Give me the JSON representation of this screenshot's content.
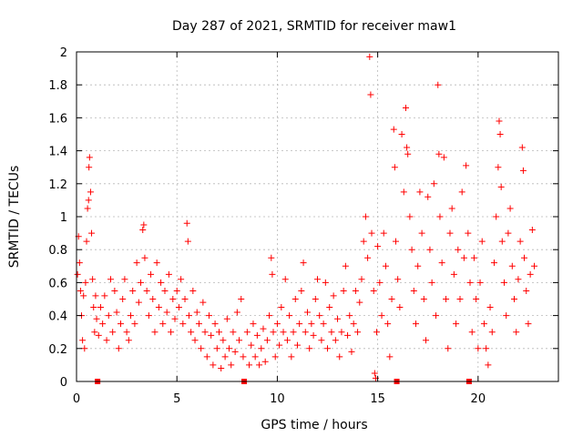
{
  "chart_data": {
    "type": "scatter",
    "title": "Day 287 of 2021, SRMTID for receiver maw1",
    "xlabel": "GPS time / hours",
    "ylabel": "SRMTID / TECUs",
    "xlim": [
      0,
      24
    ],
    "ylim": [
      0,
      2
    ],
    "xticks": [
      0,
      5,
      10,
      15,
      20
    ],
    "yticks": [
      0,
      0.2,
      0.4,
      0.6,
      0.8,
      1,
      1.2,
      1.4,
      1.6,
      1.8,
      2
    ],
    "xtick_labels": [
      "0",
      "5",
      "10",
      "15",
      "20"
    ],
    "ytick_labels": [
      "0",
      "0.2",
      "0.4",
      "0.6",
      "0.8",
      "1",
      "1.2",
      "1.4",
      "1.6",
      "1.8",
      "2"
    ],
    "grid": true,
    "marker": "plus",
    "color": "#ff0000",
    "gap_markers_x": [
      1.05,
      8.35,
      15.95,
      19.55
    ],
    "series": [
      {
        "name": "SRMTID",
        "points": [
          [
            0.05,
            0.65
          ],
          [
            0.1,
            0.88
          ],
          [
            0.15,
            0.72
          ],
          [
            0.2,
            0.55
          ],
          [
            0.25,
            0.4
          ],
          [
            0.3,
            0.25
          ],
          [
            0.35,
            0.52
          ],
          [
            0.4,
            0.2
          ],
          [
            0.45,
            0.6
          ],
          [
            0.5,
            0.85
          ],
          [
            0.55,
            1.05
          ],
          [
            0.6,
            1.1
          ],
          [
            0.62,
            1.3
          ],
          [
            0.65,
            1.36
          ],
          [
            0.7,
            1.15
          ],
          [
            0.75,
            0.9
          ],
          [
            0.8,
            0.62
          ],
          [
            0.85,
            0.45
          ],
          [
            0.9,
            0.3
          ],
          [
            0.95,
            0.52
          ],
          [
            1.0,
            0.38
          ],
          [
            1.1,
            0.28
          ],
          [
            1.2,
            0.45
          ],
          [
            1.3,
            0.35
          ],
          [
            1.4,
            0.52
          ],
          [
            1.5,
            0.25
          ],
          [
            1.6,
            0.4
          ],
          [
            1.7,
            0.62
          ],
          [
            1.8,
            0.3
          ],
          [
            1.9,
            0.55
          ],
          [
            2.0,
            0.42
          ],
          [
            2.1,
            0.2
          ],
          [
            2.2,
            0.35
          ],
          [
            2.3,
            0.5
          ],
          [
            2.4,
            0.62
          ],
          [
            2.5,
            0.3
          ],
          [
            2.6,
            0.25
          ],
          [
            2.7,
            0.4
          ],
          [
            2.8,
            0.55
          ],
          [
            2.9,
            0.35
          ],
          [
            3.0,
            0.72
          ],
          [
            3.1,
            0.48
          ],
          [
            3.2,
            0.6
          ],
          [
            3.3,
            0.92
          ],
          [
            3.35,
            0.95
          ],
          [
            3.4,
            0.75
          ],
          [
            3.5,
            0.55
          ],
          [
            3.6,
            0.4
          ],
          [
            3.7,
            0.65
          ],
          [
            3.8,
            0.5
          ],
          [
            3.9,
            0.3
          ],
          [
            4.0,
            0.72
          ],
          [
            4.1,
            0.45
          ],
          [
            4.2,
            0.6
          ],
          [
            4.3,
            0.35
          ],
          [
            4.4,
            0.55
          ],
          [
            4.5,
            0.42
          ],
          [
            4.6,
            0.65
          ],
          [
            4.7,
            0.3
          ],
          [
            4.8,
            0.5
          ],
          [
            4.9,
            0.38
          ],
          [
            5.0,
            0.55
          ],
          [
            5.1,
            0.45
          ],
          [
            5.2,
            0.62
          ],
          [
            5.3,
            0.35
          ],
          [
            5.4,
            0.5
          ],
          [
            5.5,
            0.96
          ],
          [
            5.55,
            0.85
          ],
          [
            5.6,
            0.4
          ],
          [
            5.7,
            0.3
          ],
          [
            5.8,
            0.55
          ],
          [
            5.9,
            0.25
          ],
          [
            6.0,
            0.42
          ],
          [
            6.1,
            0.35
          ],
          [
            6.2,
            0.2
          ],
          [
            6.3,
            0.48
          ],
          [
            6.4,
            0.3
          ],
          [
            6.5,
            0.15
          ],
          [
            6.6,
            0.4
          ],
          [
            6.7,
            0.28
          ],
          [
            6.8,
            0.1
          ],
          [
            6.9,
            0.35
          ],
          [
            7.0,
            0.2
          ],
          [
            7.1,
            0.3
          ],
          [
            7.2,
            0.08
          ],
          [
            7.3,
            0.25
          ],
          [
            7.4,
            0.15
          ],
          [
            7.5,
            0.38
          ],
          [
            7.6,
            0.2
          ],
          [
            7.7,
            0.1
          ],
          [
            7.8,
            0.3
          ],
          [
            7.9,
            0.18
          ],
          [
            8.0,
            0.42
          ],
          [
            8.1,
            0.25
          ],
          [
            8.2,
            0.5
          ],
          [
            8.3,
            0.15
          ],
          [
            8.5,
            0.3
          ],
          [
            8.6,
            0.1
          ],
          [
            8.7,
            0.22
          ],
          [
            8.8,
            0.35
          ],
          [
            8.9,
            0.15
          ],
          [
            9.0,
            0.28
          ],
          [
            9.1,
            0.1
          ],
          [
            9.2,
            0.2
          ],
          [
            9.3,
            0.32
          ],
          [
            9.4,
            0.12
          ],
          [
            9.5,
            0.25
          ],
          [
            9.6,
            0.4
          ],
          [
            9.7,
            0.75
          ],
          [
            9.75,
            0.65
          ],
          [
            9.8,
            0.3
          ],
          [
            9.9,
            0.15
          ],
          [
            10.0,
            0.35
          ],
          [
            10.1,
            0.22
          ],
          [
            10.2,
            0.45
          ],
          [
            10.3,
            0.3
          ],
          [
            10.4,
            0.62
          ],
          [
            10.5,
            0.25
          ],
          [
            10.6,
            0.4
          ],
          [
            10.7,
            0.15
          ],
          [
            10.8,
            0.3
          ],
          [
            10.9,
            0.5
          ],
          [
            11.0,
            0.22
          ],
          [
            11.1,
            0.35
          ],
          [
            11.2,
            0.55
          ],
          [
            11.3,
            0.72
          ],
          [
            11.4,
            0.3
          ],
          [
            11.5,
            0.42
          ],
          [
            11.6,
            0.2
          ],
          [
            11.7,
            0.35
          ],
          [
            11.8,
            0.28
          ],
          [
            11.9,
            0.5
          ],
          [
            12.0,
            0.62
          ],
          [
            12.1,
            0.4
          ],
          [
            12.2,
            0.25
          ],
          [
            12.3,
            0.35
          ],
          [
            12.4,
            0.6
          ],
          [
            12.5,
            0.2
          ],
          [
            12.6,
            0.45
          ],
          [
            12.7,
            0.3
          ],
          [
            12.8,
            0.52
          ],
          [
            12.9,
            0.25
          ],
          [
            13.0,
            0.38
          ],
          [
            13.1,
            0.15
          ],
          [
            13.2,
            0.3
          ],
          [
            13.3,
            0.55
          ],
          [
            13.4,
            0.7
          ],
          [
            13.5,
            0.28
          ],
          [
            13.6,
            0.4
          ],
          [
            13.7,
            0.18
          ],
          [
            13.8,
            0.35
          ],
          [
            13.9,
            0.55
          ],
          [
            14.0,
            0.3
          ],
          [
            14.1,
            0.48
          ],
          [
            14.2,
            0.62
          ],
          [
            14.3,
            0.85
          ],
          [
            14.4,
            1.0
          ],
          [
            14.5,
            0.75
          ],
          [
            14.6,
            1.97
          ],
          [
            14.65,
            1.74
          ],
          [
            14.7,
            0.9
          ],
          [
            14.8,
            0.55
          ],
          [
            14.85,
            0.05
          ],
          [
            14.9,
            0.02
          ],
          [
            14.95,
            0.3
          ],
          [
            15.0,
            0.82
          ],
          [
            15.1,
            0.6
          ],
          [
            15.2,
            0.4
          ],
          [
            15.3,
            0.9
          ],
          [
            15.4,
            0.7
          ],
          [
            15.5,
            0.35
          ],
          [
            15.6,
            0.15
          ],
          [
            15.7,
            0.5
          ],
          [
            15.8,
            1.53
          ],
          [
            15.85,
            1.3
          ],
          [
            15.9,
            0.85
          ],
          [
            16.0,
            0.62
          ],
          [
            16.1,
            0.45
          ],
          [
            16.2,
            1.5
          ],
          [
            16.3,
            1.15
          ],
          [
            16.4,
            1.66
          ],
          [
            16.45,
            1.42
          ],
          [
            16.5,
            1.38
          ],
          [
            16.6,
            1.0
          ],
          [
            16.7,
            0.8
          ],
          [
            16.8,
            0.55
          ],
          [
            16.9,
            0.35
          ],
          [
            17.0,
            0.7
          ],
          [
            17.1,
            1.15
          ],
          [
            17.2,
            0.9
          ],
          [
            17.3,
            0.5
          ],
          [
            17.4,
            0.25
          ],
          [
            17.5,
            1.12
          ],
          [
            17.6,
            0.8
          ],
          [
            17.7,
            0.6
          ],
          [
            17.8,
            1.2
          ],
          [
            17.9,
            0.4
          ],
          [
            18.0,
            1.8
          ],
          [
            18.05,
            1.38
          ],
          [
            18.1,
            1.0
          ],
          [
            18.2,
            0.72
          ],
          [
            18.3,
            1.36
          ],
          [
            18.4,
            0.5
          ],
          [
            18.5,
            0.2
          ],
          [
            18.6,
            0.9
          ],
          [
            18.7,
            1.05
          ],
          [
            18.8,
            0.65
          ],
          [
            18.9,
            0.35
          ],
          [
            19.0,
            0.8
          ],
          [
            19.1,
            0.5
          ],
          [
            19.2,
            1.15
          ],
          [
            19.3,
            0.75
          ],
          [
            19.4,
            1.31
          ],
          [
            19.5,
            0.9
          ],
          [
            19.6,
            0.6
          ],
          [
            19.7,
            0.3
          ],
          [
            19.8,
            0.75
          ],
          [
            19.9,
            0.5
          ],
          [
            20.0,
            0.2
          ],
          [
            20.1,
            0.6
          ],
          [
            20.2,
            0.85
          ],
          [
            20.3,
            0.35
          ],
          [
            20.4,
            0.2
          ],
          [
            20.5,
            0.1
          ],
          [
            20.6,
            0.45
          ],
          [
            20.7,
            0.3
          ],
          [
            20.8,
            0.72
          ],
          [
            20.9,
            1.0
          ],
          [
            21.0,
            1.3
          ],
          [
            21.05,
            1.58
          ],
          [
            21.1,
            1.5
          ],
          [
            21.15,
            1.18
          ],
          [
            21.2,
            0.85
          ],
          [
            21.3,
            0.6
          ],
          [
            21.4,
            0.4
          ],
          [
            21.5,
            0.9
          ],
          [
            21.6,
            1.05
          ],
          [
            21.7,
            0.7
          ],
          [
            21.8,
            0.5
          ],
          [
            21.9,
            0.3
          ],
          [
            22.0,
            0.62
          ],
          [
            22.1,
            0.85
          ],
          [
            22.2,
            1.42
          ],
          [
            22.25,
            1.28
          ],
          [
            22.3,
            0.75
          ],
          [
            22.4,
            0.55
          ],
          [
            22.5,
            0.35
          ],
          [
            22.6,
            0.65
          ],
          [
            22.7,
            0.92
          ],
          [
            22.8,
            0.7
          ]
        ]
      }
    ]
  }
}
